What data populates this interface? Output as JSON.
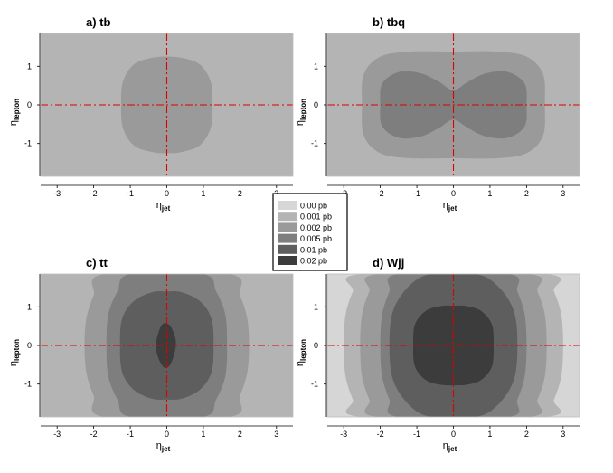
{
  "chart_data": {
    "type": "contour",
    "x_var_main": "η",
    "x_var_sub": "jet",
    "y_var_main": "η",
    "y_var_sub": "lepton",
    "xlim": [
      -3.45,
      3.45
    ],
    "ylim": [
      -1.85,
      1.85
    ],
    "x_ticks": [
      -3,
      -2,
      -1,
      0,
      1,
      2,
      3
    ],
    "x_tick_labels": [
      "-3",
      "-2",
      "-1",
      "0",
      "1",
      "2",
      "3"
    ],
    "y_ticks": [
      1,
      0,
      -1
    ],
    "y_tick_labels": [
      "1",
      "0",
      "-1"
    ],
    "reference_lines": {
      "x": 0,
      "y": 0,
      "color": "#e00000",
      "style": "dash-dot"
    },
    "legend": {
      "placement": "center",
      "entries": [
        {
          "label": "0.00 pb",
          "color": "#d6d6d6"
        },
        {
          "label": "0.001 pb",
          "color": "#b4b4b4"
        },
        {
          "label": "0.002 pb",
          "color": "#9a9a9a"
        },
        {
          "label": "0.005 pb",
          "color": "#7e7e7e"
        },
        {
          "label": "0.01 pb",
          "color": "#5e5e5e"
        },
        {
          "label": "0.02 pb",
          "color": "#3c3c3c"
        }
      ]
    },
    "panels": [
      {
        "title": "a) tb",
        "background_level": "0.001 pb",
        "contours": [
          {
            "level": "0.002 pb",
            "points": [
              [
                -1.25,
                0
              ],
              [
                -1.2,
                0.6
              ],
              [
                -0.9,
                1.05
              ],
              [
                -0.4,
                1.22
              ],
              [
                0,
                1.25
              ],
              [
                0.4,
                1.22
              ],
              [
                0.9,
                1.05
              ],
              [
                1.2,
                0.6
              ],
              [
                1.25,
                0
              ],
              [
                1.2,
                -0.6
              ],
              [
                0.9,
                -1.05
              ],
              [
                0.4,
                -1.22
              ],
              [
                0,
                -1.25
              ],
              [
                -0.4,
                -1.22
              ],
              [
                -0.9,
                -1.05
              ],
              [
                -1.2,
                -0.6
              ]
            ]
          }
        ]
      },
      {
        "title": "b) tbq",
        "background_level": "0.001 pb",
        "contours": [
          {
            "level": "0.002 pb",
            "points": [
              [
                -2.5,
                0
              ],
              [
                -2.45,
                0.8
              ],
              [
                -2.0,
                1.25
              ],
              [
                -1.2,
                1.38
              ],
              [
                0,
                1.38
              ],
              [
                1.2,
                1.38
              ],
              [
                2.0,
                1.25
              ],
              [
                2.45,
                0.8
              ],
              [
                2.5,
                0
              ],
              [
                2.45,
                -0.8
              ],
              [
                2.0,
                -1.25
              ],
              [
                1.2,
                -1.38
              ],
              [
                0,
                -1.38
              ],
              [
                -1.2,
                -1.38
              ],
              [
                -2.0,
                -1.25
              ],
              [
                -2.45,
                -0.8
              ]
            ]
          },
          {
            "level": "0.005 pb",
            "points": [
              [
                -2.0,
                0
              ],
              [
                -1.95,
                0.55
              ],
              [
                -1.5,
                0.85
              ],
              [
                -0.9,
                0.82
              ],
              [
                -0.4,
                0.6
              ],
              [
                0,
                0.38
              ],
              [
                0.4,
                0.6
              ],
              [
                0.9,
                0.82
              ],
              [
                1.5,
                0.85
              ],
              [
                1.95,
                0.55
              ],
              [
                2.0,
                0
              ],
              [
                1.95,
                -0.55
              ],
              [
                1.5,
                -0.85
              ],
              [
                0.9,
                -0.82
              ],
              [
                0.4,
                -0.6
              ],
              [
                0,
                -0.38
              ],
              [
                -0.4,
                -0.6
              ],
              [
                -0.9,
                -0.82
              ],
              [
                -1.5,
                -0.85
              ],
              [
                -1.95,
                -0.55
              ]
            ]
          }
        ]
      },
      {
        "title": "c) tt",
        "background_level": "0.001 pb",
        "contours": [
          {
            "level": "0.002 pb",
            "points": [
              [
                -2.25,
                0
              ],
              [
                -2.2,
                0.7
              ],
              [
                -2.0,
                1.3
              ],
              [
                -1.7,
                1.85
              ],
              [
                1.7,
                1.85
              ],
              [
                2.0,
                1.3
              ],
              [
                2.2,
                0.7
              ],
              [
                2.25,
                0
              ],
              [
                2.2,
                -0.7
              ],
              [
                2.0,
                -1.3
              ],
              [
                1.7,
                -1.85
              ],
              [
                -1.7,
                -1.85
              ],
              [
                -2.0,
                -1.3
              ],
              [
                -2.2,
                -0.7
              ]
            ]
          },
          {
            "level": "0.005 pb",
            "points": [
              [
                -1.65,
                0
              ],
              [
                -1.6,
                0.8
              ],
              [
                -1.35,
                1.4
              ],
              [
                -1.0,
                1.85
              ],
              [
                1.0,
                1.85
              ],
              [
                1.35,
                1.4
              ],
              [
                1.6,
                0.8
              ],
              [
                1.65,
                0
              ],
              [
                1.6,
                -0.8
              ],
              [
                1.35,
                -1.4
              ],
              [
                1.0,
                -1.85
              ],
              [
                -1.0,
                -1.85
              ],
              [
                -1.35,
                -1.4
              ],
              [
                -1.6,
                -0.8
              ]
            ]
          },
          {
            "level": "0.01 pb",
            "points": [
              [
                -1.28,
                0
              ],
              [
                -1.22,
                0.7
              ],
              [
                -0.9,
                1.15
              ],
              [
                -0.4,
                1.38
              ],
              [
                0,
                1.4
              ],
              [
                0.4,
                1.38
              ],
              [
                0.9,
                1.15
              ],
              [
                1.22,
                0.7
              ],
              [
                1.28,
                0
              ],
              [
                1.22,
                -0.7
              ],
              [
                0.9,
                -1.15
              ],
              [
                0.4,
                -1.38
              ],
              [
                0,
                -1.4
              ],
              [
                -0.4,
                -1.38
              ],
              [
                -0.9,
                -1.15
              ],
              [
                -1.22,
                -0.7
              ]
            ]
          },
          {
            "level": "0.02 pb",
            "points": [
              [
                -0.3,
                0
              ],
              [
                -0.24,
                0.3
              ],
              [
                -0.12,
                0.55
              ],
              [
                0.05,
                0.55
              ],
              [
                0.18,
                0.35
              ],
              [
                0.25,
                0.05
              ],
              [
                0.18,
                -0.3
              ],
              [
                0.05,
                -0.55
              ],
              [
                -0.1,
                -0.55
              ],
              [
                -0.24,
                -0.3
              ]
            ]
          }
        ]
      },
      {
        "title": "d) Wjj",
        "background_level": "0.00 pb",
        "contours": [
          {
            "level": "0.001 pb",
            "points": [
              [
                -3.0,
                0
              ],
              [
                -2.95,
                0.8
              ],
              [
                -2.75,
                1.4
              ],
              [
                -2.5,
                1.85
              ],
              [
                2.5,
                1.85
              ],
              [
                2.75,
                1.4
              ],
              [
                2.95,
                0.8
              ],
              [
                3.0,
                0
              ],
              [
                2.95,
                -0.8
              ],
              [
                2.75,
                -1.4
              ],
              [
                2.5,
                -1.85
              ],
              [
                -2.5,
                -1.85
              ],
              [
                -2.75,
                -1.4
              ],
              [
                -2.95,
                -0.8
              ]
            ]
          },
          {
            "level": "0.002 pb",
            "points": [
              [
                -2.55,
                0
              ],
              [
                -2.5,
                0.8
              ],
              [
                -2.3,
                1.4
              ],
              [
                -2.05,
                1.85
              ],
              [
                2.05,
                1.85
              ],
              [
                2.3,
                1.4
              ],
              [
                2.5,
                0.8
              ],
              [
                2.55,
                0
              ],
              [
                2.5,
                -0.8
              ],
              [
                2.3,
                -1.4
              ],
              [
                2.05,
                -1.85
              ],
              [
                -2.05,
                -1.85
              ],
              [
                -2.3,
                -1.4
              ],
              [
                -2.5,
                -0.8
              ]
            ]
          },
          {
            "level": "0.005 pb",
            "points": [
              [
                -2.0,
                0
              ],
              [
                -1.95,
                0.8
              ],
              [
                -1.75,
                1.4
              ],
              [
                -1.5,
                1.85
              ],
              [
                1.5,
                1.85
              ],
              [
                1.75,
                1.4
              ],
              [
                1.95,
                0.8
              ],
              [
                2.0,
                0
              ],
              [
                1.95,
                -0.8
              ],
              [
                1.75,
                -1.4
              ],
              [
                1.5,
                -1.85
              ],
              [
                -1.5,
                -1.85
              ],
              [
                -1.75,
                -1.4
              ],
              [
                -1.95,
                -0.8
              ]
            ]
          },
          {
            "level": "0.01 pb",
            "points": [
              [
                -1.75,
                0
              ],
              [
                -1.65,
                0.9
              ],
              [
                -1.2,
                1.55
              ],
              [
                -0.6,
                1.85
              ],
              [
                0.6,
                1.85
              ],
              [
                1.2,
                1.55
              ],
              [
                1.65,
                0.9
              ],
              [
                1.75,
                0
              ],
              [
                1.65,
                -0.9
              ],
              [
                1.2,
                -1.55
              ],
              [
                0.6,
                -1.85
              ],
              [
                -0.6,
                -1.85
              ],
              [
                -1.2,
                -1.55
              ],
              [
                -1.65,
                -0.9
              ]
            ]
          },
          {
            "level": "0.02 pb",
            "points": [
              [
                -1.1,
                0
              ],
              [
                -1.05,
                0.55
              ],
              [
                -0.75,
                0.9
              ],
              [
                -0.35,
                1.02
              ],
              [
                0,
                1.03
              ],
              [
                0.35,
                1.02
              ],
              [
                0.75,
                0.9
              ],
              [
                1.05,
                0.55
              ],
              [
                1.1,
                0
              ],
              [
                1.05,
                -0.55
              ],
              [
                0.75,
                -0.9
              ],
              [
                0.35,
                -1.02
              ],
              [
                0,
                -1.03
              ],
              [
                -0.35,
                -1.02
              ],
              [
                -0.75,
                -0.9
              ],
              [
                -1.05,
                -0.55
              ]
            ]
          }
        ]
      }
    ]
  }
}
